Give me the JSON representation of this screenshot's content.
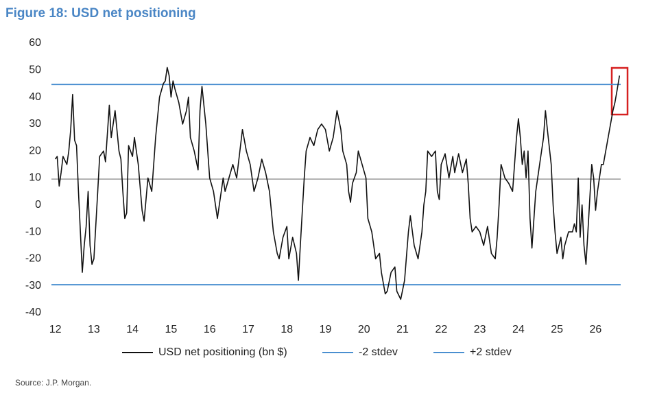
{
  "chart_data": {
    "type": "line",
    "title": "Figure 18: USD net positioning",
    "source": "Source: J.P. Morgan.",
    "xlim": [
      11.9,
      26.65
    ],
    "xticks": [
      12,
      13,
      14,
      15,
      16,
      17,
      18,
      19,
      20,
      21,
      22,
      23,
      24,
      25,
      26
    ],
    "ylim": [
      -40,
      60
    ],
    "yticks": [
      -40,
      -30,
      -20,
      -10,
      0,
      10,
      20,
      30,
      40,
      50,
      60
    ],
    "reference_line": {
      "value": 9.6,
      "color": "#999999"
    },
    "series": [
      {
        "name": "USD net positioning (bn $)",
        "color": "#111111",
        "x": [
          12.0,
          12.05,
          12.1,
          12.15,
          12.2,
          12.3,
          12.35,
          12.4,
          12.45,
          12.5,
          12.55,
          12.6,
          12.65,
          12.7,
          12.75,
          12.8,
          12.85,
          12.9,
          12.95,
          13.0,
          13.1,
          13.15,
          13.25,
          13.3,
          13.4,
          13.45,
          13.55,
          13.65,
          13.7,
          13.75,
          13.8,
          13.85,
          13.9,
          14.0,
          14.05,
          14.15,
          14.25,
          14.3,
          14.4,
          14.5,
          14.6,
          14.7,
          14.8,
          14.85,
          14.9,
          14.95,
          15.0,
          15.05,
          15.1,
          15.2,
          15.3,
          15.4,
          15.45,
          15.5,
          15.6,
          15.7,
          15.75,
          15.8,
          15.9,
          16.0,
          16.1,
          16.2,
          16.25,
          16.35,
          16.4,
          16.5,
          16.6,
          16.7,
          16.8,
          16.85,
          16.95,
          17.05,
          17.15,
          17.25,
          17.35,
          17.45,
          17.55,
          17.65,
          17.75,
          17.8,
          17.9,
          18.0,
          18.05,
          18.15,
          18.25,
          18.3,
          18.35,
          18.45,
          18.5,
          18.6,
          18.7,
          18.8,
          18.9,
          19.0,
          19.1,
          19.2,
          19.3,
          19.4,
          19.45,
          19.55,
          19.6,
          19.65,
          19.7,
          19.8,
          19.85,
          19.95,
          20.05,
          20.1,
          20.2,
          20.3,
          20.4,
          20.45,
          20.55,
          20.6,
          20.7,
          20.8,
          20.85,
          20.95,
          21.05,
          21.15,
          21.2,
          21.3,
          21.4,
          21.5,
          21.55,
          21.6,
          21.65,
          21.75,
          21.85,
          21.9,
          21.95,
          22.0,
          22.1,
          22.2,
          22.3,
          22.35,
          22.45,
          22.55,
          22.65,
          22.7,
          22.75,
          22.8,
          22.9,
          23.0,
          23.1,
          23.2,
          23.3,
          23.4,
          23.45,
          23.5,
          23.55,
          23.65,
          23.75,
          23.85,
          23.95,
          24.0,
          24.05,
          24.1,
          24.15,
          24.2,
          24.25,
          24.3,
          24.35,
          24.45,
          24.55,
          24.65,
          24.7,
          24.75,
          24.85,
          24.9,
          24.95,
          25.0,
          25.1,
          25.15,
          25.2,
          25.3,
          25.4,
          25.45,
          25.5,
          25.55,
          25.6,
          25.65,
          25.7,
          25.75,
          25.8,
          25.9,
          25.95,
          26.0,
          26.05,
          26.15,
          26.2,
          26.45,
          26.5,
          26.55,
          26.62
        ],
        "values": [
          17,
          18,
          7,
          12,
          18,
          15,
          20,
          28,
          41,
          24,
          22,
          5,
          -10,
          -25,
          -15,
          -8,
          5,
          -15,
          -22,
          -20,
          5,
          18,
          20,
          16,
          37,
          25,
          35,
          20,
          17,
          5,
          -5,
          -3,
          22,
          18,
          25,
          15,
          -2,
          -6,
          10,
          5,
          25,
          40,
          45,
          46,
          51,
          48,
          40,
          46,
          43,
          38,
          30,
          35,
          40,
          25,
          20,
          13,
          35,
          44,
          30,
          10,
          5,
          -5,
          0,
          10,
          5,
          10,
          15,
          10,
          22,
          28,
          20,
          15,
          5,
          10,
          17,
          12,
          5,
          -10,
          -18,
          -20,
          -12,
          -8,
          -20,
          -12,
          -18,
          -28,
          -15,
          10,
          20,
          25,
          22,
          28,
          30,
          28,
          20,
          25,
          35,
          28,
          20,
          15,
          5,
          1,
          8,
          12,
          20,
          15,
          10,
          -5,
          -10,
          -20,
          -18,
          -25,
          -33,
          -32,
          -25,
          -23,
          -32,
          -35,
          -28,
          -10,
          -4,
          -15,
          -20,
          -10,
          0,
          5,
          20,
          18,
          20,
          5,
          2,
          15,
          19,
          10,
          18,
          12,
          19,
          12,
          17,
          8,
          -5,
          -10,
          -8,
          -10,
          -15,
          -8,
          -18,
          -20,
          -12,
          0,
          15,
          10,
          8,
          5,
          25,
          32,
          25,
          15,
          20,
          10,
          20,
          -5,
          -16,
          5,
          15,
          25,
          35,
          28,
          15,
          0,
          -10,
          -18,
          -12,
          -20,
          -15,
          -10,
          -10,
          -7,
          -10,
          10,
          -12,
          0,
          -15,
          -22,
          -10,
          15,
          10,
          -2,
          5,
          15,
          15,
          35,
          38,
          42,
          48
        ]
      },
      {
        "name": "-2 stdev",
        "color": "#4a8fd0",
        "x": [
          11.9,
          26.65
        ],
        "values": [
          -29.6,
          -29.6
        ]
      },
      {
        "name": "+2 stdev",
        "color": "#4a8fd0",
        "x": [
          11.9,
          26.65
        ],
        "values": [
          44.7,
          44.7
        ]
      }
    ]
  }
}
